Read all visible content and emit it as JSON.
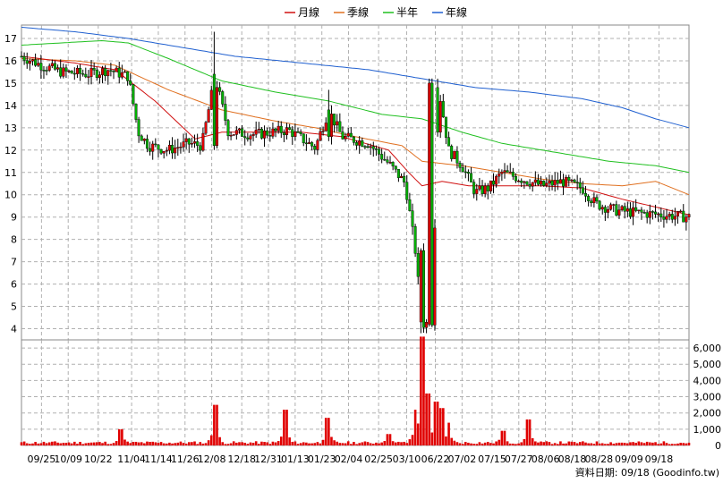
{
  "chart_data": {
    "type": "candlestick",
    "legend": [
      {
        "label": "月線",
        "color": "#d01010"
      },
      {
        "label": "季線",
        "color": "#e07020"
      },
      {
        "label": "半年",
        "color": "#20c020"
      },
      {
        "label": "年線",
        "color": "#2060d0"
      }
    ],
    "price_axis": {
      "ylim": [
        3.5,
        17.6
      ],
      "ticks": [
        4,
        5,
        6,
        7,
        8,
        9,
        10,
        11,
        12,
        13,
        14,
        15,
        16,
        17
      ]
    },
    "volume_axis": {
      "ylim": [
        0,
        6500
      ],
      "ticks": [
        0,
        1000,
        2000,
        3000,
        4000,
        5000,
        6000
      ],
      "tick_labels": [
        "0",
        "1,000",
        "2,000",
        "3,000",
        "4,000",
        "5,000",
        "6,000"
      ]
    },
    "x_labels": [
      "09/25",
      "10/09",
      "10/22",
      "11/04",
      "11/14",
      "11/26",
      "12/08",
      "12/18",
      "12/31",
      "01/13",
      "01/23",
      "02/04",
      "02/25",
      "03/10",
      "06/22",
      "07/02",
      "07/15",
      "07/27",
      "08/06",
      "08/18",
      "08/28",
      "09/09",
      "09/18"
    ],
    "x_label_positions": [
      0.03,
      0.07,
      0.115,
      0.165,
      0.205,
      0.245,
      0.285,
      0.33,
      0.37,
      0.41,
      0.45,
      0.49,
      0.535,
      0.577,
      0.62,
      0.66,
      0.705,
      0.745,
      0.785,
      0.825,
      0.865,
      0.91,
      0.955
    ],
    "series_ohlc_keypoints": [
      {
        "t": 0.0,
        "close": 16.2
      },
      {
        "t": 0.03,
        "close": 15.8
      },
      {
        "t": 0.06,
        "close": 15.5
      },
      {
        "t": 0.1,
        "close": 15.4
      },
      {
        "t": 0.13,
        "close": 15.6
      },
      {
        "t": 0.16,
        "close": 15.3
      },
      {
        "t": 0.175,
        "close": 12.8
      },
      {
        "t": 0.19,
        "close": 12.2
      },
      {
        "t": 0.22,
        "close": 12.0
      },
      {
        "t": 0.25,
        "close": 12.3
      },
      {
        "t": 0.27,
        "close": 12.2
      },
      {
        "t": 0.29,
        "close": 15.3
      },
      {
        "t": 0.31,
        "close": 12.8
      },
      {
        "t": 0.35,
        "close": 12.7
      },
      {
        "t": 0.4,
        "close": 12.9
      },
      {
        "t": 0.44,
        "close": 12.1
      },
      {
        "t": 0.46,
        "close": 13.8
      },
      {
        "t": 0.48,
        "close": 12.6
      },
      {
        "t": 0.52,
        "close": 12.3
      },
      {
        "t": 0.55,
        "close": 11.4
      },
      {
        "t": 0.575,
        "close": 10.5
      },
      {
        "t": 0.59,
        "close": 7.5
      },
      {
        "t": 0.6,
        "close": 4.2
      },
      {
        "t": 0.615,
        "close": 4.3
      },
      {
        "t": 0.625,
        "close": 14.8
      },
      {
        "t": 0.64,
        "close": 12.0
      },
      {
        "t": 0.66,
        "close": 11.3
      },
      {
        "t": 0.68,
        "close": 10.1
      },
      {
        "t": 0.7,
        "close": 10.3
      },
      {
        "t": 0.72,
        "close": 11.0
      },
      {
        "t": 0.75,
        "close": 10.7
      },
      {
        "t": 0.78,
        "close": 10.4
      },
      {
        "t": 0.81,
        "close": 10.6
      },
      {
        "t": 0.84,
        "close": 10.3
      },
      {
        "t": 0.86,
        "close": 9.6
      },
      {
        "t": 0.89,
        "close": 9.3
      },
      {
        "t": 0.92,
        "close": 9.2
      },
      {
        "t": 0.96,
        "close": 9.1
      },
      {
        "t": 1.0,
        "close": 9.0
      }
    ],
    "ma_month": [
      [
        0,
        16.2
      ],
      [
        0.08,
        15.9
      ],
      [
        0.14,
        15.6
      ],
      [
        0.2,
        14.2
      ],
      [
        0.26,
        12.5
      ],
      [
        0.3,
        12.8
      ],
      [
        0.36,
        12.8
      ],
      [
        0.42,
        12.8
      ],
      [
        0.48,
        12.6
      ],
      [
        0.55,
        12.0
      ],
      [
        0.58,
        11.0
      ],
      [
        0.6,
        10.4
      ],
      [
        0.63,
        10.6
      ],
      [
        0.67,
        10.4
      ],
      [
        0.72,
        10.4
      ],
      [
        0.78,
        10.4
      ],
      [
        0.84,
        10.3
      ],
      [
        0.9,
        9.8
      ],
      [
        1.0,
        9.1
      ]
    ],
    "ma_quarter": [
      [
        0,
        16.1
      ],
      [
        0.08,
        16.0
      ],
      [
        0.14,
        15.8
      ],
      [
        0.22,
        14.7
      ],
      [
        0.3,
        13.8
      ],
      [
        0.38,
        13.3
      ],
      [
        0.44,
        13.0
      ],
      [
        0.5,
        12.6
      ],
      [
        0.57,
        12.2
      ],
      [
        0.6,
        11.5
      ],
      [
        0.66,
        11.3
      ],
      [
        0.72,
        11.0
      ],
      [
        0.78,
        10.7
      ],
      [
        0.84,
        10.5
      ],
      [
        0.9,
        10.4
      ],
      [
        0.95,
        10.6
      ],
      [
        1.0,
        10.0
      ]
    ],
    "ma_half": [
      [
        0,
        16.7
      ],
      [
        0.06,
        16.8
      ],
      [
        0.12,
        16.9
      ],
      [
        0.16,
        16.8
      ],
      [
        0.22,
        16.1
      ],
      [
        0.3,
        15.1
      ],
      [
        0.38,
        14.6
      ],
      [
        0.46,
        14.2
      ],
      [
        0.54,
        13.6
      ],
      [
        0.6,
        13.4
      ],
      [
        0.66,
        12.8
      ],
      [
        0.72,
        12.3
      ],
      [
        0.8,
        11.9
      ],
      [
        0.88,
        11.5
      ],
      [
        0.95,
        11.3
      ],
      [
        1.0,
        11.0
      ]
    ],
    "ma_year": [
      [
        0,
        17.5
      ],
      [
        0.08,
        17.3
      ],
      [
        0.16,
        17.0
      ],
      [
        0.24,
        16.6
      ],
      [
        0.32,
        16.2
      ],
      [
        0.42,
        15.9
      ],
      [
        0.52,
        15.6
      ],
      [
        0.6,
        15.2
      ],
      [
        0.68,
        14.8
      ],
      [
        0.76,
        14.6
      ],
      [
        0.84,
        14.3
      ],
      [
        0.9,
        13.9
      ],
      [
        0.95,
        13.4
      ],
      [
        1.0,
        13.0
      ]
    ],
    "volume_keypoints": [
      {
        "t": 0.15,
        "v": 1000
      },
      {
        "t": 0.29,
        "v": 2500
      },
      {
        "t": 0.395,
        "v": 2200
      },
      {
        "t": 0.46,
        "v": 1700
      },
      {
        "t": 0.55,
        "v": 700
      },
      {
        "t": 0.59,
        "v": 2200
      },
      {
        "t": 0.6,
        "v": 6700
      },
      {
        "t": 0.61,
        "v": 3200
      },
      {
        "t": 0.62,
        "v": 2700
      },
      {
        "t": 0.63,
        "v": 2300
      },
      {
        "t": 0.64,
        "v": 1400
      },
      {
        "t": 0.72,
        "v": 900
      },
      {
        "t": 0.76,
        "v": 1600
      }
    ]
  },
  "footer": {
    "text": "資料日期: 09/18 (Goodinfo.tw)"
  }
}
